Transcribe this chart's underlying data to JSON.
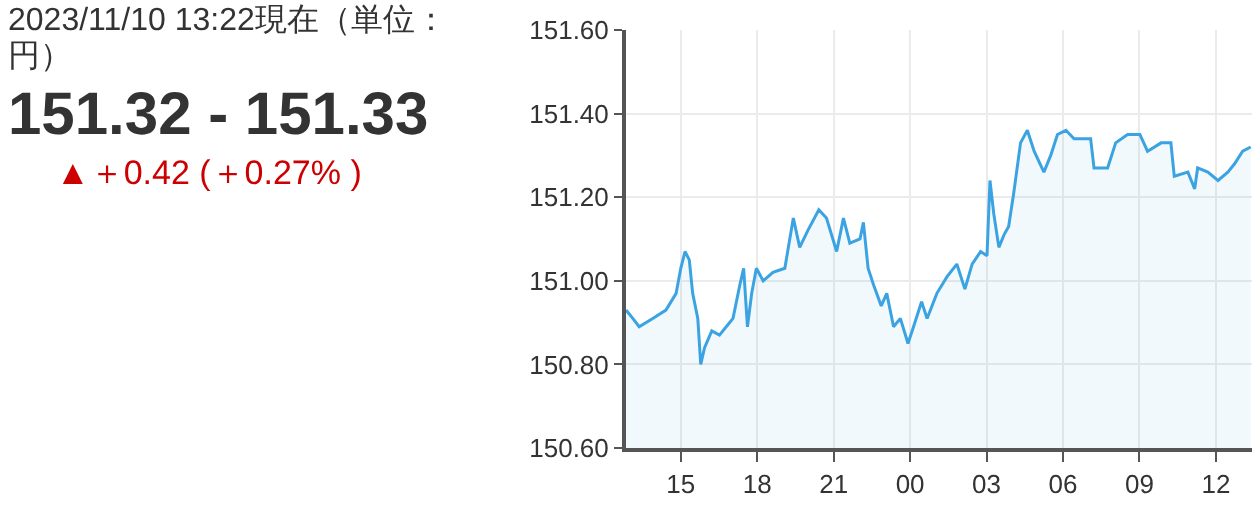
{
  "chart_data": {
    "type": "area",
    "title": "2023/11/10 13:22現在（単位：円）",
    "subtitle": "151.32 - 151.33",
    "annotations": [
      "▲＋0.42 (＋0.27% )"
    ],
    "x": [
      "2023-11-09T12:51",
      "2023-11-09T13:07",
      "2023-11-09T13:22",
      "2023-11-09T13:54",
      "2023-11-09T14:25",
      "2023-11-09T14:49",
      "2023-11-09T15:00",
      "2023-11-09T15:10",
      "2023-11-09T15:20",
      "2023-11-09T15:28",
      "2023-11-09T15:40",
      "2023-11-09T15:47",
      "2023-11-09T15:56",
      "2023-11-09T16:13",
      "2023-11-09T16:31",
      "2023-11-09T16:47",
      "2023-11-09T17:03",
      "2023-11-09T17:19",
      "2023-11-09T17:28",
      "2023-11-09T17:37",
      "2023-11-09T17:47",
      "2023-11-09T17:58",
      "2023-11-09T18:14",
      "2023-11-09T18:37",
      "2023-11-09T19:05",
      "2023-11-09T19:25",
      "2023-11-09T19:40",
      "2023-11-09T19:59",
      "2023-11-09T20:25",
      "2023-11-09T20:43",
      "2023-11-09T21:07",
      "2023-11-09T21:23",
      "2023-11-09T21:38",
      "2023-11-09T22:02",
      "2023-11-09T22:10",
      "2023-11-09T22:21",
      "2023-11-09T22:34",
      "2023-11-09T22:52",
      "2023-11-09T23:05",
      "2023-11-09T23:21",
      "2023-11-09T23:37",
      "2023-11-09T23:55",
      "2023-11-10T00:08",
      "2023-11-10T00:27",
      "2023-11-10T00:40",
      "2023-11-10T01:03",
      "2023-11-10T01:27",
      "2023-11-10T01:50",
      "2023-11-10T02:09",
      "2023-11-10T02:26",
      "2023-11-10T02:46",
      "2023-11-10T03:01",
      "2023-11-10T03:08",
      "2023-11-10T03:17",
      "2023-11-10T03:29",
      "2023-11-10T03:41",
      "2023-11-10T03:52",
      "2023-11-10T04:04",
      "2023-11-10T04:20",
      "2023-11-10T04:36",
      "2023-11-10T04:52",
      "2023-11-10T05:15",
      "2023-11-10T05:31",
      "2023-11-10T05:47",
      "2023-11-10T06:07",
      "2023-11-10T06:26",
      "2023-11-10T07:05",
      "2023-11-10T07:13",
      "2023-11-10T07:45",
      "2023-11-10T08:04",
      "2023-11-10T08:32",
      "2023-11-10T09:01",
      "2023-11-10T09:19",
      "2023-11-10T09:51",
      "2023-11-10T10:14",
      "2023-11-10T10:22",
      "2023-11-10T10:54",
      "2023-11-10T11:10",
      "2023-11-10T11:17",
      "2023-11-10T11:41",
      "2023-11-10T12:05",
      "2023-11-10T12:28",
      "2023-11-10T12:44",
      "2023-11-10T13:03",
      "2023-11-10T13:22"
    ],
    "series": [
      {
        "color": "#3ca3e2",
        "values": [
          150.93,
          150.91,
          150.89,
          150.91,
          150.93,
          150.97,
          151.03,
          151.07,
          151.05,
          150.97,
          150.91,
          150.8,
          150.84,
          150.88,
          150.87,
          150.89,
          150.91,
          150.99,
          151.03,
          150.89,
          150.97,
          151.03,
          151.0,
          151.02,
          151.03,
          151.15,
          151.08,
          151.12,
          151.17,
          151.15,
          151.07,
          151.15,
          151.09,
          151.1,
          151.14,
          151.03,
          150.99,
          150.94,
          150.97,
          150.89,
          150.91,
          150.85,
          150.89,
          150.95,
          150.91,
          150.97,
          151.01,
          151.04,
          150.98,
          151.04,
          151.07,
          151.06,
          151.24,
          151.16,
          151.08,
          151.11,
          151.13,
          151.21,
          151.33,
          151.36,
          151.31,
          151.26,
          151.3,
          151.35,
          151.36,
          151.34,
          151.34,
          151.27,
          151.27,
          151.33,
          151.35,
          151.35,
          151.31,
          151.33,
          151.33,
          151.25,
          151.26,
          151.22,
          151.27,
          151.26,
          151.24,
          151.26,
          151.28,
          151.31,
          151.32
        ]
      }
    ],
    "xlim": [
      "2023-11-09T12:51",
      "2023-11-10T13:25"
    ],
    "xticks": [
      {
        "value": "2023-11-09T15:00",
        "label": "15"
      },
      {
        "value": "2023-11-09T18:00",
        "label": "18"
      },
      {
        "value": "2023-11-09T21:00",
        "label": "21"
      },
      {
        "value": "2023-11-10T00:00",
        "label": "00"
      },
      {
        "value": "2023-11-10T03:00",
        "label": "03"
      },
      {
        "value": "2023-11-10T06:00",
        "label": "06"
      },
      {
        "value": "2023-11-10T09:00",
        "label": "09"
      },
      {
        "value": "2023-11-10T12:00",
        "label": "12"
      }
    ],
    "ylim": [
      150.6,
      151.6
    ],
    "yticks": [
      {
        "value": 150.6,
        "label": "150.60"
      },
      {
        "value": 150.8,
        "label": "150.80"
      },
      {
        "value": 151.0,
        "label": "151.00"
      },
      {
        "value": 151.2,
        "label": "151.20"
      },
      {
        "value": 151.4,
        "label": "151.40"
      },
      {
        "value": 151.6,
        "label": "151.60"
      }
    ],
    "grid": true
  }
}
